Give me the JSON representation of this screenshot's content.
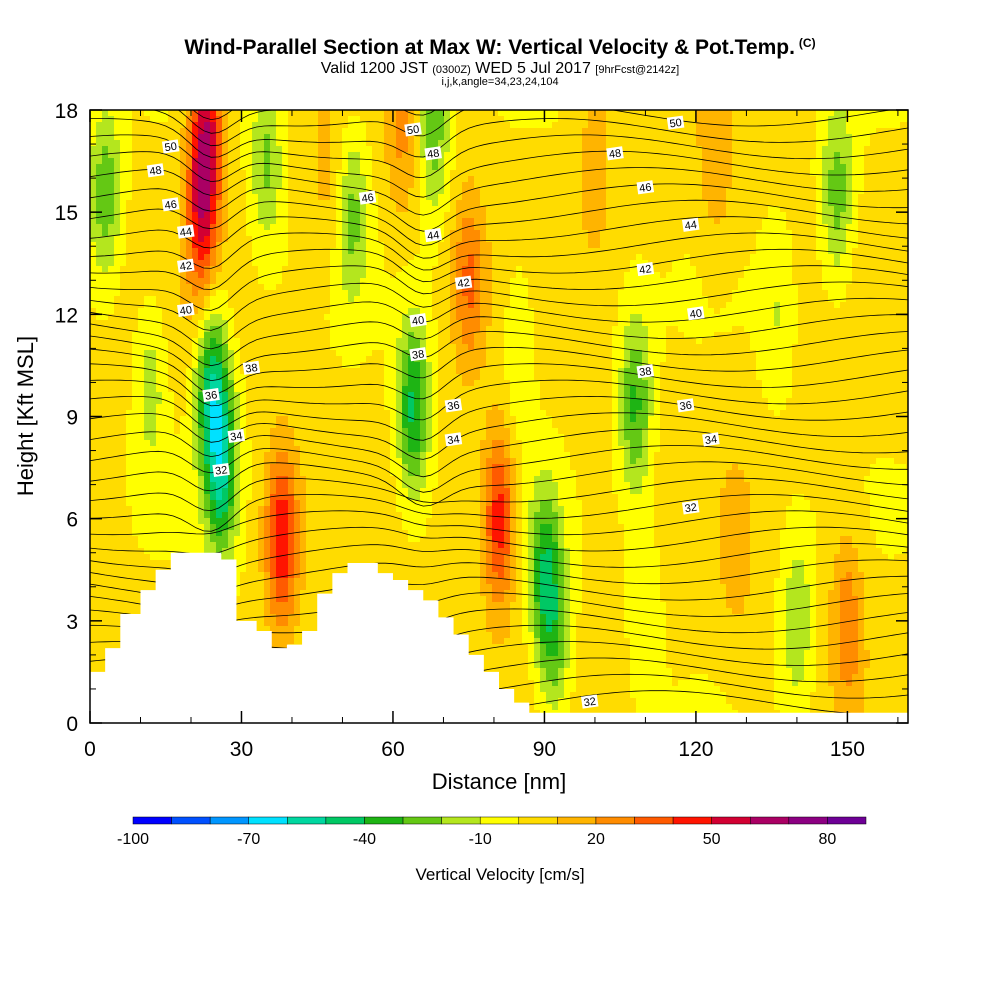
{
  "header": {
    "title": "Wind-Parallel Section at Max W: Vertical Velocity & Pot.Temp.",
    "title_tag": "(C)",
    "valid_prefix": "Valid 1200 JST",
    "valid_utc": "(0300Z)",
    "valid_date": "WED 5 Jul 2017",
    "forecast": "[9hrFcst@2142z]",
    "indices": "i,j,k,angle=34,23,24,104"
  },
  "chart_data": {
    "type": "heatmap",
    "xlabel": "Distance [nm]",
    "ylabel": "Height [Kft MSL]",
    "xlim": [
      0,
      162
    ],
    "ylim": [
      0,
      18
    ],
    "x_ticks": [
      "0",
      "30",
      "60",
      "90",
      "120",
      "150"
    ],
    "y_ticks": [
      "0",
      "3",
      "6",
      "9",
      "12",
      "15",
      "18"
    ],
    "colorbar": {
      "label": "Vertical Velocity [cm/s]",
      "tick_labels": [
        "-100",
        "-70",
        "-40",
        "-10",
        "20",
        "50",
        "80"
      ],
      "tick_values": [
        -100,
        -70,
        -40,
        -10,
        20,
        50,
        80
      ],
      "range": [
        -100,
        90
      ],
      "colors": [
        "#0000ff",
        "#0050ff",
        "#0096ff",
        "#00e1ff",
        "#00d7a0",
        "#00c864",
        "#1eb414",
        "#64c814",
        "#b4e61e",
        "#ffff00",
        "#ffdc00",
        "#ffb400",
        "#ff8c00",
        "#ff5a00",
        "#ff1400",
        "#d20032",
        "#aa0064",
        "#8c0082",
        "#6e0096"
      ]
    },
    "velocity_features": [
      {
        "x": 3,
        "y": 15.5,
        "w": -30
      },
      {
        "x": 12,
        "y": 10,
        "w": -18
      },
      {
        "x": 23,
        "y": 17.2,
        "w": 55
      },
      {
        "x": 22,
        "y": 14.5,
        "w": 35
      },
      {
        "x": 24,
        "y": 10,
        "w": -45
      },
      {
        "x": 26,
        "y": 7.5,
        "w": -50
      },
      {
        "x": 35,
        "y": 16.5,
        "w": -25
      },
      {
        "x": 38,
        "y": 5.4,
        "w": 45
      },
      {
        "x": 47,
        "y": 16,
        "w": 10
      },
      {
        "x": 52,
        "y": 15,
        "w": -25
      },
      {
        "x": 62,
        "y": 17.2,
        "w": 18
      },
      {
        "x": 68,
        "y": 17.5,
        "w": -30
      },
      {
        "x": 64,
        "y": 9.2,
        "w": -45
      },
      {
        "x": 75,
        "y": 13,
        "w": 28
      },
      {
        "x": 81,
        "y": 6,
        "w": 45
      },
      {
        "x": 85,
        "y": 11,
        "w": -15
      },
      {
        "x": 90,
        "y": 4.5,
        "w": -35
      },
      {
        "x": 92,
        "y": 2.5,
        "w": -28
      },
      {
        "x": 100,
        "y": 16.5,
        "w": 15
      },
      {
        "x": 108,
        "y": 9.3,
        "w": -35
      },
      {
        "x": 110,
        "y": 3.5,
        "w": -12
      },
      {
        "x": 124,
        "y": 16.5,
        "w": 15
      },
      {
        "x": 128,
        "y": 5,
        "w": 12
      },
      {
        "x": 136,
        "y": 12,
        "w": -12
      },
      {
        "x": 140,
        "y": 3,
        "w": -22
      },
      {
        "x": 148,
        "y": 15.5,
        "w": -28
      },
      {
        "x": 150,
        "y": 3,
        "w": 25
      }
    ],
    "terrain": [
      {
        "x": 0,
        "h": 1.5
      },
      {
        "x": 3,
        "h": 2.2
      },
      {
        "x": 6,
        "h": 3.2
      },
      {
        "x": 10,
        "h": 3.9
      },
      {
        "x": 13,
        "h": 4.5
      },
      {
        "x": 16,
        "h": 5.0
      },
      {
        "x": 26,
        "h": 4.8
      },
      {
        "x": 29,
        "h": 3.0
      },
      {
        "x": 33,
        "h": 2.7
      },
      {
        "x": 36,
        "h": 2.2
      },
      {
        "x": 39,
        "h": 2.3
      },
      {
        "x": 42,
        "h": 2.7
      },
      {
        "x": 45,
        "h": 3.8
      },
      {
        "x": 48,
        "h": 4.4
      },
      {
        "x": 51,
        "h": 4.7
      },
      {
        "x": 57,
        "h": 4.4
      },
      {
        "x": 60,
        "h": 4.2
      },
      {
        "x": 63,
        "h": 3.9
      },
      {
        "x": 66,
        "h": 3.6
      },
      {
        "x": 69,
        "h": 3.1
      },
      {
        "x": 72,
        "h": 2.6
      },
      {
        "x": 75,
        "h": 2.0
      },
      {
        "x": 78,
        "h": 1.5
      },
      {
        "x": 81,
        "h": 1.0
      },
      {
        "x": 84,
        "h": 0.6
      },
      {
        "x": 87,
        "h": 0.3
      },
      {
        "x": 90,
        "h": 0.3
      },
      {
        "x": 162,
        "h": 0.3
      }
    ],
    "contour_labels": [
      {
        "text": "50",
        "x": 16,
        "y": 16.9
      },
      {
        "text": "48",
        "x": 13,
        "y": 16.2
      },
      {
        "text": "46",
        "x": 16,
        "y": 15.2
      },
      {
        "text": "44",
        "x": 19,
        "y": 14.4
      },
      {
        "text": "42",
        "x": 19,
        "y": 13.4
      },
      {
        "text": "40",
        "x": 19,
        "y": 12.1
      },
      {
        "text": "38",
        "x": 32,
        "y": 10.4
      },
      {
        "text": "36",
        "x": 24,
        "y": 9.6
      },
      {
        "text": "34",
        "x": 29,
        "y": 8.4
      },
      {
        "text": "32",
        "x": 26,
        "y": 7.4
      },
      {
        "text": "50",
        "x": 64,
        "y": 17.4
      },
      {
        "text": "48",
        "x": 68,
        "y": 16.7
      },
      {
        "text": "46",
        "x": 55,
        "y": 15.4
      },
      {
        "text": "44",
        "x": 68,
        "y": 14.3
      },
      {
        "text": "42",
        "x": 74,
        "y": 12.9
      },
      {
        "text": "40",
        "x": 65,
        "y": 11.8
      },
      {
        "text": "38",
        "x": 65,
        "y": 10.8
      },
      {
        "text": "36",
        "x": 72,
        "y": 9.3
      },
      {
        "text": "34",
        "x": 72,
        "y": 8.3
      },
      {
        "text": "50",
        "x": 116,
        "y": 17.6
      },
      {
        "text": "48",
        "x": 104,
        "y": 16.7
      },
      {
        "text": "46",
        "x": 110,
        "y": 15.7
      },
      {
        "text": "44",
        "x": 119,
        "y": 14.6
      },
      {
        "text": "42",
        "x": 110,
        "y": 13.3
      },
      {
        "text": "40",
        "x": 120,
        "y": 12.0
      },
      {
        "text": "38",
        "x": 110,
        "y": 10.3
      },
      {
        "text": "36",
        "x": 118,
        "y": 9.3
      },
      {
        "text": "34",
        "x": 123,
        "y": 8.3
      },
      {
        "text": "32",
        "x": 119,
        "y": 6.3
      },
      {
        "text": "32",
        "x": 99,
        "y": 0.6
      }
    ]
  }
}
